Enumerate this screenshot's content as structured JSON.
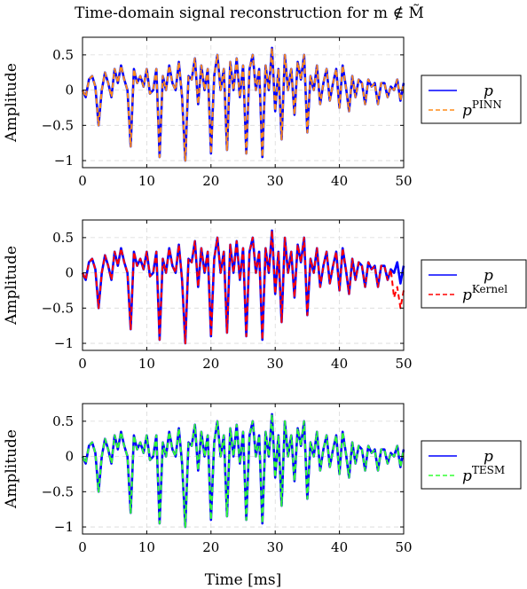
{
  "title": "Time-domain signal reconstruction for m ∉ M̃",
  "xlabel": "Time [ms]",
  "colors": {
    "reference": "#0000ff",
    "pinn": "#ff8c1a",
    "kernel": "#ff0000",
    "tesm": "#33ff33",
    "grid": "#d9d9d9"
  },
  "chart_data": [
    {
      "type": "line",
      "ylabel": "Amplitude",
      "xlim": [
        0,
        50
      ],
      "ylim": [
        -1.1,
        0.75
      ],
      "xticks": [
        0,
        10,
        20,
        30,
        40,
        50
      ],
      "yticks": [
        -1,
        -0.5,
        0,
        0.5
      ],
      "grid": true,
      "legend_position": "right",
      "series": [
        {
          "name": "p",
          "label_base": "p",
          "label_sup": "",
          "color": "#0000ff",
          "dash": "solid"
        },
        {
          "name": "p^PINN",
          "label_base": "p",
          "label_sup": "PINN",
          "color": "#ff8c1a",
          "dash": "dashed"
        }
      ]
    },
    {
      "type": "line",
      "ylabel": "Amplitude",
      "xlim": [
        0,
        50
      ],
      "ylim": [
        -1.1,
        0.75
      ],
      "xticks": [
        0,
        10,
        20,
        30,
        40,
        50
      ],
      "yticks": [
        -1,
        -0.5,
        0,
        0.5
      ],
      "grid": true,
      "legend_position": "right",
      "series": [
        {
          "name": "p",
          "label_base": "p",
          "label_sup": "",
          "color": "#0000ff",
          "dash": "solid"
        },
        {
          "name": "p^Kernel",
          "label_base": "p",
          "label_sup": "Kernel",
          "color": "#ff0000",
          "dash": "dashed"
        }
      ]
    },
    {
      "type": "line",
      "ylabel": "Amplitude",
      "xlim": [
        0,
        50
      ],
      "ylim": [
        -1.1,
        0.75
      ],
      "xticks": [
        0,
        10,
        20,
        30,
        40,
        50
      ],
      "yticks": [
        -1,
        -0.5,
        0,
        0.5
      ],
      "grid": true,
      "legend_position": "right",
      "series": [
        {
          "name": "p",
          "label_base": "p",
          "label_sup": "",
          "color": "#0000ff",
          "dash": "solid"
        },
        {
          "name": "p^TESM",
          "label_base": "p",
          "label_sup": "TESM",
          "color": "#33ff33",
          "dash": "dashed"
        }
      ]
    }
  ],
  "signal": {
    "x": [
      0,
      0.5,
      1,
      1.5,
      2,
      2.5,
      3,
      3.5,
      4,
      4.5,
      5,
      5.5,
      6,
      6.5,
      7,
      7.5,
      8,
      8.5,
      9,
      9.5,
      10,
      10.5,
      11,
      11.5,
      12,
      12.5,
      13,
      13.5,
      14,
      14.5,
      15,
      15.5,
      16,
      16.5,
      17,
      17.5,
      18,
      18.5,
      19,
      19.5,
      20,
      20.5,
      21,
      21.5,
      22,
      22.5,
      23,
      23.5,
      24,
      24.5,
      25,
      25.5,
      26,
      26.5,
      27,
      27.5,
      28,
      28.5,
      29,
      29.5,
      30,
      30.5,
      31,
      31.5,
      32,
      32.5,
      33,
      33.5,
      34,
      34.5,
      35,
      35.5,
      36,
      36.5,
      37,
      37.5,
      38,
      38.5,
      39,
      39.5,
      40,
      40.5,
      41,
      41.5,
      42,
      42.5,
      43,
      43.5,
      44,
      44.5,
      45,
      45.5,
      46,
      46.5,
      47,
      47.5,
      48,
      48.5,
      49,
      49.5,
      50
    ],
    "y": [
      0.0,
      -0.1,
      0.15,
      0.2,
      0.05,
      -0.5,
      0.0,
      0.25,
      0.1,
      -0.1,
      0.3,
      0.1,
      0.35,
      0.15,
      0.0,
      -0.8,
      0.3,
      0.1,
      0.2,
      0.05,
      0.3,
      -0.05,
      0.0,
      0.3,
      -0.95,
      0.2,
      0.0,
      0.35,
      0.1,
      0.0,
      0.4,
      -0.1,
      -1.0,
      0.2,
      0.15,
      0.45,
      -0.2,
      0.35,
      0.0,
      0.3,
      -0.9,
      0.2,
      0.5,
      0.0,
      0.3,
      -0.85,
      0.4,
      0.0,
      0.45,
      -0.1,
      0.35,
      -0.9,
      0.3,
      0.5,
      0.0,
      0.3,
      -0.95,
      0.35,
      0.0,
      0.6,
      -0.3,
      0.3,
      -0.7,
      0.5,
      0.0,
      0.3,
      -0.35,
      0.4,
      0.15,
      0.5,
      -0.6,
      0.2,
      0.0,
      0.35,
      -0.2,
      0.1,
      0.3,
      -0.15,
      0.1,
      0.3,
      -0.25,
      0.35,
      0.05,
      -0.3,
      0.2,
      -0.1,
      0.15,
      0.1,
      -0.2,
      0.15,
      0.05,
      0.1,
      -0.2,
      0.1,
      0.1,
      -0.1,
      0.05,
      0.0,
      0.15,
      -0.15,
      0.1
    ]
  }
}
